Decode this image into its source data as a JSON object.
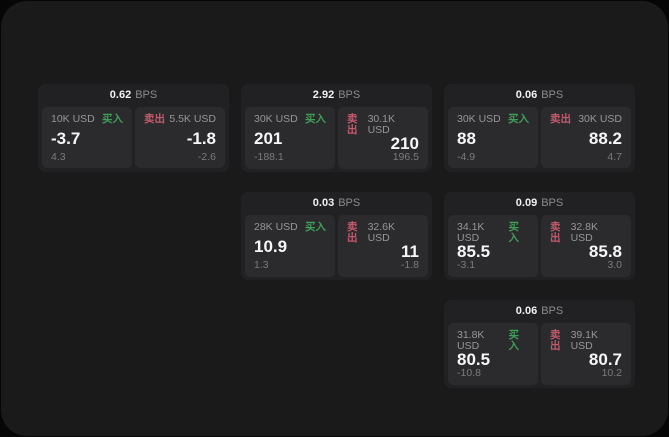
{
  "labels": {
    "bps_unit": "BPS",
    "buy": "买入",
    "sell": "卖出"
  },
  "colors": {
    "window_bg": "#1a1a1b",
    "card_bg": "#212123",
    "panel_bg": "#2b2b2d",
    "buy_green": "#3f9e57",
    "sell_red": "#c4596a"
  },
  "cards": [
    {
      "bps": "0.62",
      "buy": {
        "amount": "10K USD",
        "price": "-3.7",
        "sub": "4.3"
      },
      "sell": {
        "amount": "5.5K USD",
        "price": "-1.8",
        "sub": "-2.6"
      }
    },
    {
      "bps": "2.92",
      "buy": {
        "amount": "30K USD",
        "price": "201",
        "sub": "-188.1"
      },
      "sell": {
        "amount": "30.1K USD",
        "price": "210",
        "sub": "196.5"
      }
    },
    {
      "bps": "0.06",
      "buy": {
        "amount": "30K USD",
        "price": "88",
        "sub": "-4.9"
      },
      "sell": {
        "amount": "30K USD",
        "price": "88.2",
        "sub": "4.7"
      }
    },
    {
      "bps": "0.03",
      "buy": {
        "amount": "28K USD",
        "price": "10.9",
        "sub": "1.3"
      },
      "sell": {
        "amount": "32.6K USD",
        "price": "11",
        "sub": "-1.8"
      }
    },
    {
      "bps": "0.09",
      "buy": {
        "amount": "34.1K USD",
        "price": "85.5",
        "sub": "-3.1"
      },
      "sell": {
        "amount": "32.8K USD",
        "price": "85.8",
        "sub": "3.0"
      }
    },
    {
      "bps": "0.06",
      "buy": {
        "amount": "31.8K USD",
        "price": "80.5",
        "sub": "-10.8"
      },
      "sell": {
        "amount": "39.1K USD",
        "price": "80.7",
        "sub": "10.2"
      }
    }
  ]
}
